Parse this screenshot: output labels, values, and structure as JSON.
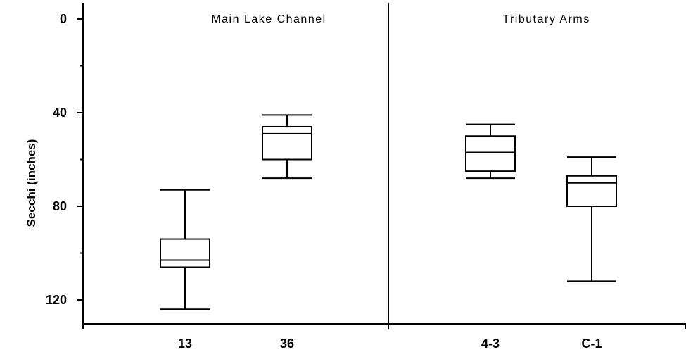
{
  "chart_data": {
    "type": "box",
    "ylabel": "Secchi (inches)",
    "y_axis_inverted": true,
    "ylim": [
      0,
      130
    ],
    "y_ticks": [
      0,
      40,
      80,
      120
    ],
    "panels": [
      {
        "title": "Main Lake Channel",
        "boxes": [
          {
            "label": "13",
            "whisker_low": 73,
            "q1": 94,
            "median": 103,
            "q3": 106,
            "whisker_high": 124
          },
          {
            "label": "36",
            "whisker_low": 41,
            "q1": 46,
            "median": 49,
            "q3": 60,
            "whisker_high": 68
          }
        ]
      },
      {
        "title": "Tributary Arms",
        "boxes": [
          {
            "label": "4-3",
            "whisker_low": 45,
            "q1": 50,
            "median": 57,
            "q3": 65,
            "whisker_high": 68
          },
          {
            "label": "C-1",
            "whisker_low": 59,
            "q1": 67,
            "median": 70,
            "q3": 80,
            "whisker_high": 112
          }
        ]
      }
    ]
  }
}
